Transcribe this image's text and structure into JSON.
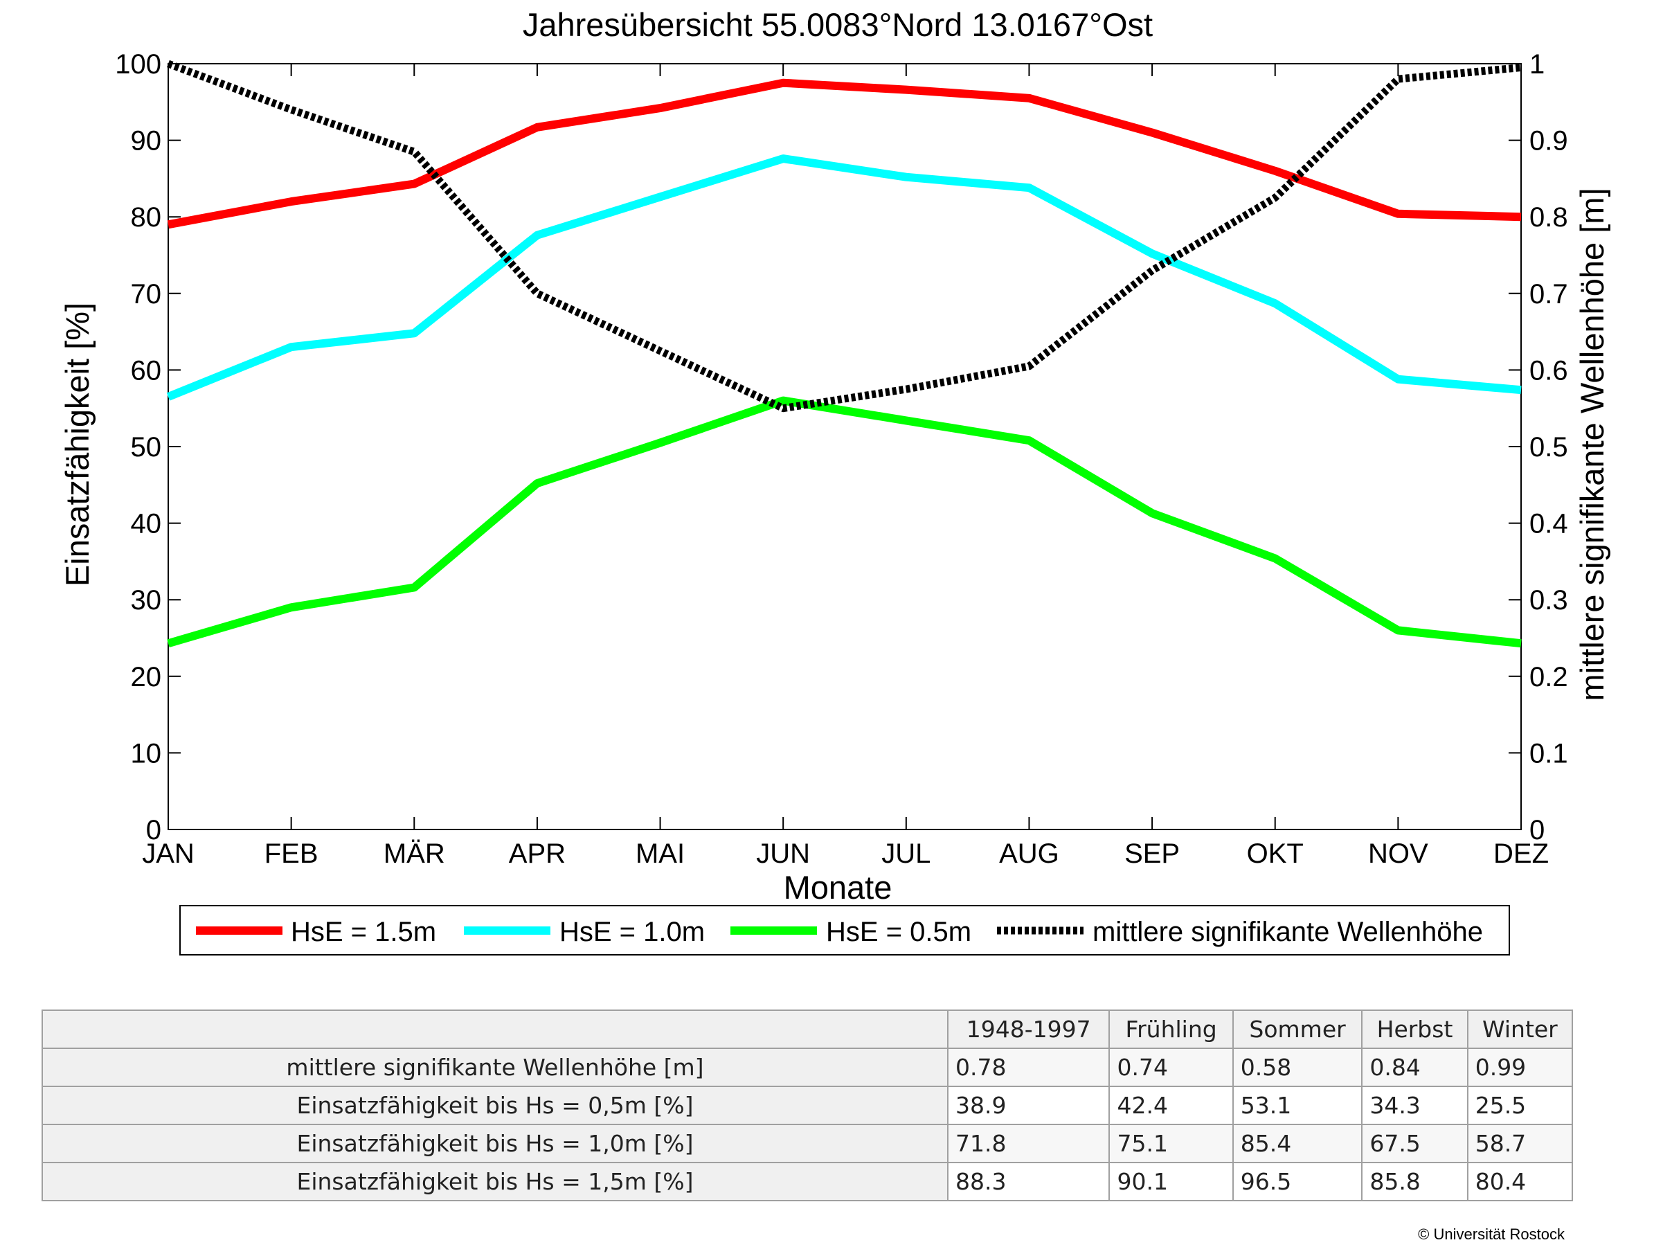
{
  "chart_data": {
    "type": "line",
    "title": "Jahresübersicht  55.0083°Nord  13.0167°Ost",
    "xlabel": "Monate",
    "ylabel": "Einsatzfähigkeit [%]",
    "y2label": "mittlere signifikante Wellenhöhe [m]",
    "categories": [
      "JAN",
      "FEB",
      "MÄR",
      "APR",
      "MAI",
      "JUN",
      "JUL",
      "AUG",
      "SEP",
      "OKT",
      "NOV",
      "DEZ"
    ],
    "ylim": [
      0,
      100
    ],
    "y2lim": [
      0,
      1
    ],
    "yticks": [
      "0",
      "10",
      "20",
      "30",
      "40",
      "50",
      "60",
      "70",
      "80",
      "90",
      "100"
    ],
    "y2ticks": [
      "0",
      "0.1",
      "0.2",
      "0.3",
      "0.4",
      "0.5",
      "0.6",
      "0.7",
      "0.8",
      "0.9",
      "1"
    ],
    "grid": false,
    "legend_position": "bottom",
    "series": [
      {
        "name": "HsE = 1.5m",
        "axis": "left",
        "color": "#ff0000",
        "style": "solid",
        "values": [
          79,
          82,
          84.3,
          91.7,
          94.2,
          97.5,
          96.6,
          95.5,
          91,
          86,
          80.4,
          80
        ]
      },
      {
        "name": "HsE = 1.0m",
        "axis": "left",
        "color": "#00ffff",
        "style": "solid",
        "values": [
          56.5,
          63,
          64.8,
          77.6,
          82.6,
          87.6,
          85.2,
          83.8,
          75.2,
          68.7,
          58.8,
          57.4
        ]
      },
      {
        "name": "HsE = 0.5m",
        "axis": "left",
        "color": "#00ff00",
        "style": "solid",
        "values": [
          24.3,
          29,
          31.6,
          45.2,
          50.5,
          56,
          53.4,
          50.8,
          41.3,
          35.4,
          26,
          24.3
        ]
      },
      {
        "name": "mittlere signifikante Wellenhöhe",
        "axis": "right",
        "color": "#000000",
        "style": "dotted",
        "values": [
          1.01,
          0.94,
          0.885,
          0.7,
          0.625,
          0.55,
          0.575,
          0.605,
          0.73,
          0.825,
          0.98,
          0.995
        ]
      }
    ]
  },
  "table": {
    "header": [
      "1948-1997",
      "Frühling",
      "Sommer",
      "Herbst",
      "Winter"
    ],
    "rows": [
      {
        "label": "mittlere signifikante Wellenhöhe [m]",
        "values": [
          "0.78",
          "0.74",
          "0.58",
          "0.84",
          "0.99"
        ]
      },
      {
        "label": "Einsatzfähigkeit bis Hs = 0,5m [%]",
        "values": [
          "38.9",
          "42.4",
          "53.1",
          "34.3",
          "25.5"
        ]
      },
      {
        "label": "Einsatzfähigkeit bis Hs = 1,0m [%]",
        "values": [
          "71.8",
          "75.1",
          "85.4",
          "67.5",
          "58.7"
        ]
      },
      {
        "label": "Einsatzfähigkeit bis Hs = 1,5m [%]",
        "values": [
          "88.3",
          "90.1",
          "96.5",
          "85.8",
          "80.4"
        ]
      }
    ]
  },
  "copyright": "© Universität Rostock"
}
